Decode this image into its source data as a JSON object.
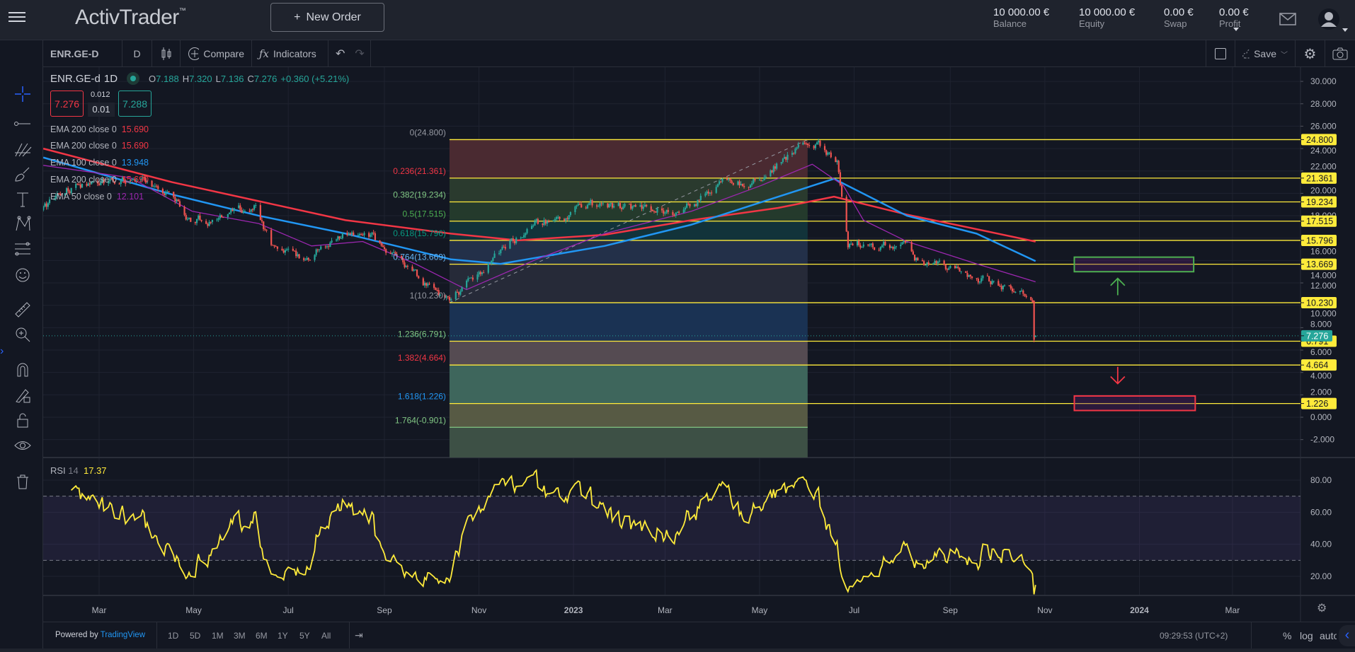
{
  "header": {
    "logo": "ActivTrader",
    "logo_tm": "™",
    "new_order_label": "New Order",
    "stats": [
      {
        "value": "10 000.00 €",
        "label": "Balance"
      },
      {
        "value": "10 000.00 €",
        "label": "Equity"
      },
      {
        "value": "0.00 €",
        "label": "Swap"
      },
      {
        "value": "0.00 €",
        "label": "Profit"
      }
    ]
  },
  "toolbar": {
    "symbol": "ENR.GE-D",
    "interval": "D",
    "compare_label": "Compare",
    "indicators_label": "Indicators",
    "save_label": "Save"
  },
  "legend": {
    "symbol": "ENR.GE-d",
    "interval": "1D",
    "o_label": "O",
    "o": "7.188",
    "h_label": "H",
    "h": "7.320",
    "l_label": "L",
    "l": "7.136",
    "c_label": "C",
    "c": "7.276",
    "change": "+0.360 (+5.21%)",
    "bid": "7.276",
    "spread_top": "0.012",
    "spread": "0.01",
    "ask": "7.288",
    "emas": [
      {
        "label": "EMA 200 close 0",
        "value": "15.690",
        "color": "#f23645"
      },
      {
        "label": "EMA 200 close 0",
        "value": "15.690",
        "color": "#f23645"
      },
      {
        "label": "EMA 100 close 0",
        "value": "13.948",
        "color": "#2196f3"
      },
      {
        "label": "EMA 200 close 0",
        "value": "15.690",
        "color": "#f23645"
      },
      {
        "label": "EMA 50 close 0",
        "value": "12.101",
        "color": "#9c27b0"
      }
    ]
  },
  "rsi": {
    "label": "RSI",
    "period": "14",
    "value": "17.37",
    "upper": 70,
    "lower": 30
  },
  "colors": {
    "up": "#26a69a",
    "down": "#ef5350",
    "fib_line": "#ffeb3b",
    "rsi": "#ffeb3b",
    "price_badge": "#26a69a"
  },
  "chart_data": {
    "type": "candlestick",
    "symbol": "ENR.GE-d",
    "price_axis_ticks": [
      "30.000",
      "28.000",
      "26.000",
      "24.000",
      "22.000",
      "20.000",
      "18.000",
      "16.000",
      "14.000",
      "12.000",
      "10.000",
      "8.000",
      "6.000",
      "4.000",
      "2.000",
      "0.000",
      "-2.000"
    ],
    "price_range": [
      -2,
      30
    ],
    "time_axis_ticks": [
      {
        "label": "Mar",
        "date": "2022-03-01"
      },
      {
        "label": "May",
        "date": "2022-05-01"
      },
      {
        "label": "Jul",
        "date": "2022-07-01"
      },
      {
        "label": "Sep",
        "date": "2022-09-01"
      },
      {
        "label": "Nov",
        "date": "2022-11-01"
      },
      {
        "label": "2023",
        "date": "2023-01-01"
      },
      {
        "label": "Mar",
        "date": "2023-03-01"
      },
      {
        "label": "May",
        "date": "2023-05-01"
      },
      {
        "label": "Jul",
        "date": "2023-07-01"
      },
      {
        "label": "Sep",
        "date": "2023-09-01"
      },
      {
        "label": "Nov",
        "date": "2023-11-01"
      },
      {
        "label": "2024",
        "date": "2024-01-01"
      },
      {
        "label": "Mar",
        "date": "2024-03-01"
      }
    ],
    "price_path": [
      [
        "2022-01-24",
        18.5
      ],
      [
        "2022-02-10",
        20.5
      ],
      [
        "2022-03-01",
        21.0
      ],
      [
        "2022-03-20",
        21.3
      ],
      [
        "2022-04-10",
        20.5
      ],
      [
        "2022-05-01",
        17.5
      ],
      [
        "2022-05-20",
        17.8
      ],
      [
        "2022-06-10",
        18.6
      ],
      [
        "2022-06-20",
        15.5
      ],
      [
        "2022-07-10",
        14.0
      ],
      [
        "2022-08-05",
        16.3
      ],
      [
        "2022-08-25",
        15.8
      ],
      [
        "2022-09-05",
        14.5
      ],
      [
        "2022-09-25",
        12.0
      ],
      [
        "2022-10-12",
        10.4
      ],
      [
        "2022-11-01",
        12.8
      ],
      [
        "2022-11-20",
        15.5
      ],
      [
        "2022-12-10",
        17.2
      ],
      [
        "2023-01-10",
        18.9
      ],
      [
        "2023-02-10",
        18.7
      ],
      [
        "2023-03-10",
        18.5
      ],
      [
        "2023-04-05",
        20.8
      ],
      [
        "2023-04-25",
        21.0
      ],
      [
        "2023-05-15",
        23.0
      ],
      [
        "2023-05-28",
        24.3
      ],
      [
        "2023-06-10",
        24.0
      ],
      [
        "2023-06-20",
        22.8
      ],
      [
        "2023-06-27",
        15.0
      ],
      [
        "2023-07-05",
        15.5
      ],
      [
        "2023-08-01",
        15.6
      ],
      [
        "2023-08-10",
        14.2
      ],
      [
        "2023-09-01",
        13.2
      ],
      [
        "2023-10-01",
        11.8
      ],
      [
        "2023-10-20",
        11.0
      ],
      [
        "2023-10-24",
        10.4
      ]
    ],
    "last_candles": [
      {
        "date": "2023-10-25",
        "o": 10.4,
        "h": 10.45,
        "l": 6.7,
        "c": 6.916
      },
      {
        "date": "2023-10-26",
        "o": 7.188,
        "h": 7.32,
        "l": 7.136,
        "c": 7.276
      }
    ],
    "last_price": "7.276",
    "ema_lines": [
      {
        "name": "EMA 200",
        "color": "#f23645",
        "points": [
          [
            "2022-01-24",
            24.0
          ],
          [
            "2022-04-17",
            21.0
          ],
          [
            "2022-08-07",
            17.6
          ],
          [
            "2022-10-14",
            16.4
          ],
          [
            "2022-11-26",
            15.8
          ],
          [
            "2023-01-21",
            16.3
          ],
          [
            "2023-03-18",
            17.6
          ],
          [
            "2023-05-13",
            18.7
          ],
          [
            "2023-06-18",
            19.7
          ],
          [
            "2023-08-04",
            18.1
          ],
          [
            "2023-09-18",
            16.8
          ],
          [
            "2023-10-26",
            15.69
          ]
        ]
      },
      {
        "name": "EMA 100",
        "color": "#2196f3",
        "points": [
          [
            "2022-01-24",
            23.2
          ],
          [
            "2022-04-17",
            19.9
          ],
          [
            "2022-06-12",
            18.0
          ],
          [
            "2022-08-07",
            16.4
          ],
          [
            "2022-10-14",
            14.1
          ],
          [
            "2022-11-15",
            13.7
          ],
          [
            "2023-01-21",
            15.3
          ],
          [
            "2023-03-18",
            17.2
          ],
          [
            "2023-05-13",
            19.7
          ],
          [
            "2023-06-18",
            21.3
          ],
          [
            "2023-08-04",
            18.0
          ],
          [
            "2023-09-18",
            16.4
          ],
          [
            "2023-10-26",
            13.948
          ]
        ]
      },
      {
        "name": "EMA 50",
        "color": "#9c27b0",
        "points": [
          [
            "2022-01-24",
            22.5
          ],
          [
            "2022-03-21",
            21.4
          ],
          [
            "2022-04-30",
            18.4
          ],
          [
            "2022-06-12",
            17.3
          ],
          [
            "2022-07-16",
            15.3
          ],
          [
            "2022-08-18",
            15.7
          ],
          [
            "2022-09-21",
            13.7
          ],
          [
            "2022-10-24",
            11.4
          ],
          [
            "2022-12-08",
            14.1
          ],
          [
            "2023-01-21",
            16.4
          ],
          [
            "2023-03-18",
            18.4
          ],
          [
            "2023-05-02",
            20.7
          ],
          [
            "2023-06-04",
            22.6
          ],
          [
            "2023-06-24",
            20.7
          ],
          [
            "2023-07-07",
            17.6
          ],
          [
            "2023-08-04",
            15.7
          ],
          [
            "2023-09-18",
            13.7
          ],
          [
            "2023-10-26",
            12.101
          ]
        ]
      }
    ],
    "fibonacci": {
      "start": {
        "date": "2022-10-13",
        "price": 10.23
      },
      "end": {
        "date": "2023-06-01",
        "price": 24.8
      },
      "levels": [
        {
          "ratio": "0",
          "price": "24.800",
          "color": "#9598a1",
          "fill": "#4a2a31",
          "badge": true
        },
        {
          "ratio": "0.236",
          "price": "21.361",
          "color": "#f23645",
          "fill": "#2a3a2e",
          "badge": true
        },
        {
          "ratio": "0.382",
          "price": "19.234",
          "color": "#81c784",
          "fill": "#243a2c",
          "badge": true
        },
        {
          "ratio": "0.5",
          "price": "17.515",
          "color": "#4caf50",
          "fill": "#12333a",
          "badge": true
        },
        {
          "ratio": "0.618",
          "price": "15.796",
          "color": "#089981",
          "fill": "#233049",
          "badge": true
        },
        {
          "ratio": "0.764",
          "price": "13.669",
          "color": "#64b5f6",
          "fill": "#262a38",
          "badge": true
        },
        {
          "ratio": "1",
          "price": "10.230",
          "color": "#9598a1",
          "fill": "#1a3253",
          "badge": true
        },
        {
          "ratio": "1.236",
          "price": "6.791",
          "color": "#81c784",
          "fill": "#554b52",
          "badge": true
        },
        {
          "ratio": "1.382",
          "price": "4.664",
          "color": "#f23645",
          "fill": "#3e665c",
          "badge": true
        },
        {
          "ratio": "1.618",
          "price": "1.226",
          "color": "#2196f3",
          "fill": "#575a44",
          "badge": true
        },
        {
          "ratio": "1.764",
          "price": "-0.901",
          "color": "#81c784",
          "fill": "#3d5045",
          "badge": false
        }
      ]
    },
    "targets": [
      {
        "type": "rectangle",
        "border": "#4caf50",
        "from": "2023-11-20",
        "to": "2024-02-05",
        "top": 14.3,
        "bottom": 13.0
      },
      {
        "type": "rectangle",
        "border": "#f23645",
        "from": "2023-11-20",
        "to": "2024-02-06",
        "top": 1.9,
        "bottom": 0.6
      },
      {
        "type": "arrow-up",
        "color": "#4caf50",
        "date": "2023-12-18",
        "from": 10.9,
        "to": 12.4
      },
      {
        "type": "arrow-down",
        "color": "#f23645",
        "date": "2023-12-18",
        "from": 4.5,
        "to": 3.0
      }
    ],
    "trend_line": {
      "from": [
        "2022-10-13",
        10.23
      ],
      "to": [
        "2023-06-01",
        24.8
      ]
    },
    "rsi_axis_ticks": [
      "80.00",
      "60.00",
      "40.00",
      "20.00"
    ],
    "rsi_range": [
      20,
      80
    ]
  },
  "bottom": {
    "powered_by": "Powered by ",
    "tradingview": "TradingView",
    "ranges": [
      "1D",
      "5D",
      "1M",
      "3M",
      "6M",
      "1Y",
      "5Y",
      "All"
    ],
    "time": "09:29:53 (UTC+2)",
    "percent": "%",
    "log": "log",
    "auto": "auto"
  }
}
